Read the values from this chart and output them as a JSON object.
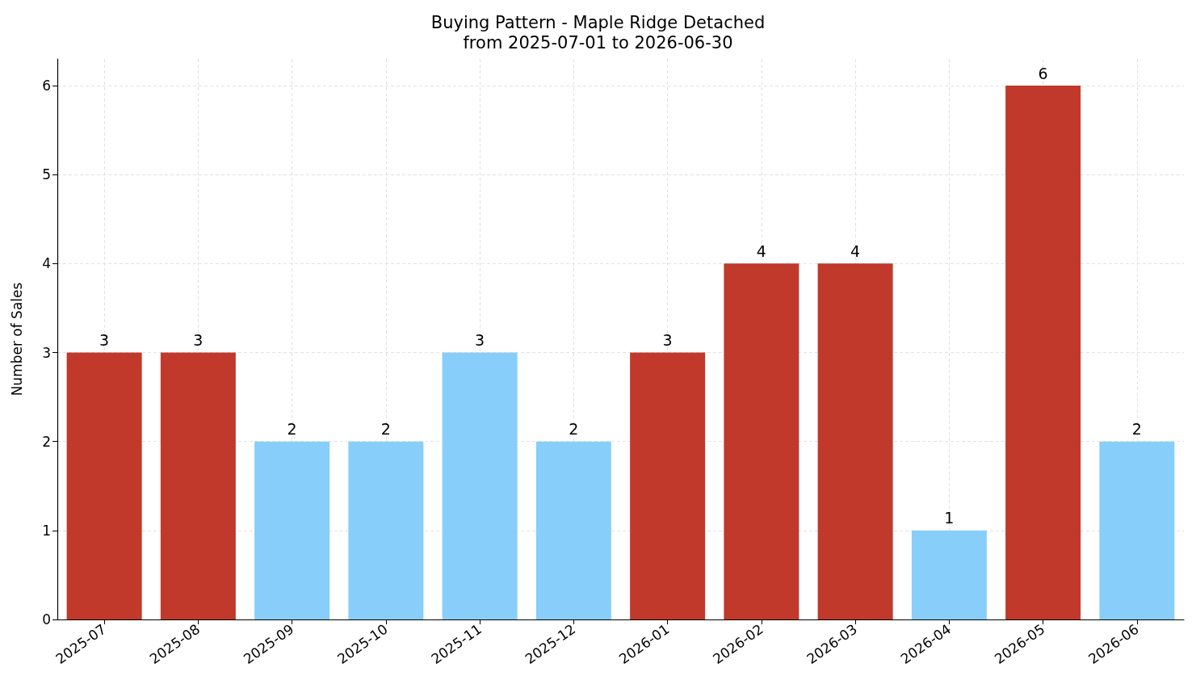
{
  "chart_data": {
    "type": "bar",
    "title": "Buying Pattern - Maple Ridge Detached",
    "subtitle": "from 2025-07-01 to 2026-06-30",
    "ylabel": "Number of Sales",
    "categories": [
      "2025-07",
      "2025-08",
      "2025-09",
      "2025-10",
      "2025-11",
      "2025-12",
      "2026-01",
      "2026-02",
      "2026-03",
      "2026-04",
      "2026-05",
      "2026-06"
    ],
    "values": [
      3,
      3,
      2,
      2,
      3,
      2,
      3,
      4,
      4,
      1,
      6,
      2
    ],
    "colors": [
      "#c0392b",
      "#c0392b",
      "#87cefa",
      "#87cefa",
      "#87cefa",
      "#87cefa",
      "#c0392b",
      "#c0392b",
      "#c0392b",
      "#87cefa",
      "#c0392b",
      "#87cefa"
    ],
    "ylim": [
      0,
      6.3
    ],
    "yticks": [
      0,
      1,
      2,
      3,
      4,
      5,
      6
    ],
    "grid": true,
    "data_labels": true
  }
}
